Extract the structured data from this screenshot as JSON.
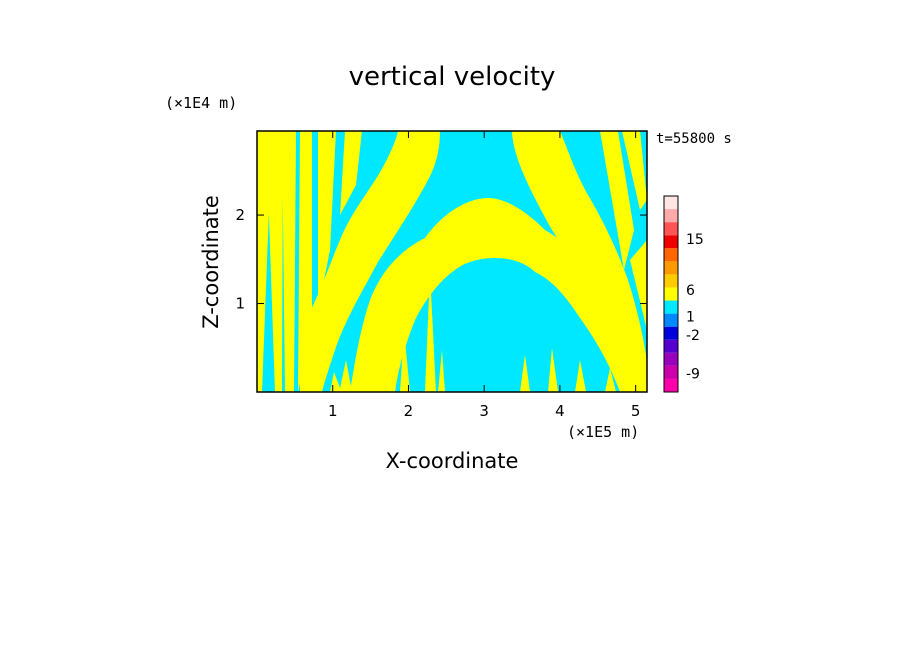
{
  "chart_data": {
    "type": "heatmap",
    "title": "vertical velocity",
    "xlabel": "X-coordinate",
    "ylabel": "Z-coordinate",
    "x_unit": "(×1E5 m)",
    "z_unit": "(×1E4 m)",
    "time_label": "t=55800 s",
    "xlim": [
      0,
      5.15
    ],
    "ylim": [
      0,
      2.95
    ],
    "x_ticks": [
      {
        "value": 1,
        "label": "1"
      },
      {
        "value": 2,
        "label": "2"
      },
      {
        "value": 3,
        "label": "3"
      },
      {
        "value": 4,
        "label": "4"
      },
      {
        "value": 5,
        "label": "5"
      }
    ],
    "y_ticks": [
      {
        "value": 1,
        "label": "1"
      },
      {
        "value": 2,
        "label": "2"
      }
    ],
    "field_colors": {
      "positive": "#ffff00",
      "negative": "#00e8ff"
    },
    "colorbar": {
      "levels": [
        {
          "color": "#ff00aa"
        },
        {
          "color": "#cc00aa"
        },
        {
          "color": "#9900bb"
        },
        {
          "color": "#5500cc"
        },
        {
          "color": "#0000dd"
        },
        {
          "color": "#0088ff"
        },
        {
          "color": "#00e8ff"
        },
        {
          "color": "#ffff00"
        },
        {
          "color": "#ffcc00"
        },
        {
          "color": "#ff9900"
        },
        {
          "color": "#ff6600"
        },
        {
          "color": "#ee0000"
        },
        {
          "color": "#ff5555"
        },
        {
          "color": "#ffaaaa"
        },
        {
          "color": "#ffe4e4"
        }
      ],
      "labels": [
        {
          "label": "15",
          "position": 0.78
        },
        {
          "label": "6",
          "position": 0.52
        },
        {
          "label": "1",
          "position": 0.385
        },
        {
          "label": "-2",
          "position": 0.29
        },
        {
          "label": "-9",
          "position": 0.095
        }
      ]
    }
  }
}
